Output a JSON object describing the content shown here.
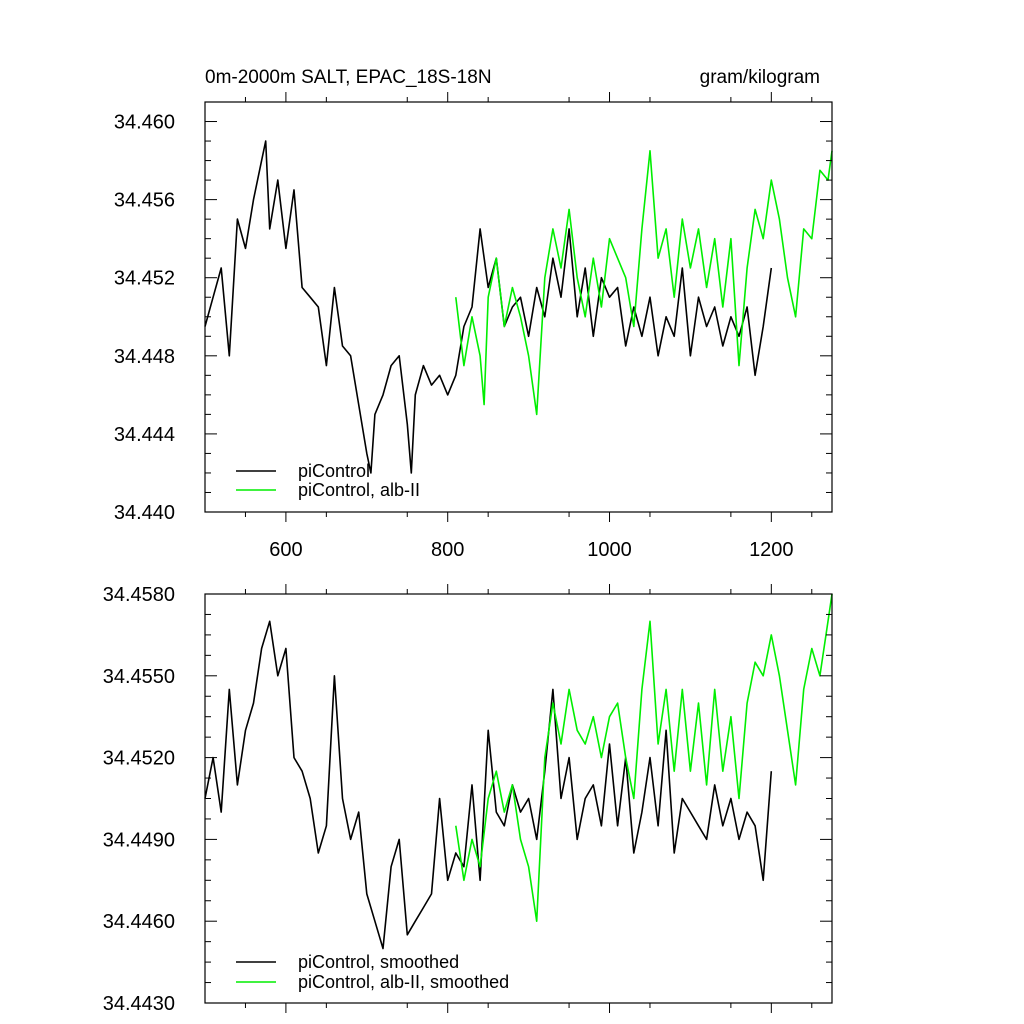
{
  "chart_data": [
    {
      "type": "line",
      "title": "0m-2000m SALT, EPAC_18S-18N",
      "units": "gram/kilogram",
      "xlim": [
        500,
        1275
      ],
      "ylim": [
        34.44,
        34.461
      ],
      "xticks": [
        600,
        800,
        1000,
        1200
      ],
      "xtick_labels": [
        "600",
        "800",
        "1000",
        "1200"
      ],
      "yticks": [
        34.44,
        34.444,
        34.448,
        34.452,
        34.456,
        34.46
      ],
      "ytick_labels": [
        "34.440",
        "34.444",
        "34.448",
        "34.452",
        "34.456",
        "34.460"
      ],
      "legend_position": "bottom-left",
      "grid": false,
      "series": [
        {
          "name": "piControl",
          "color": "#000000",
          "x": [
            500,
            510,
            520,
            530,
            540,
            550,
            560,
            570,
            575,
            580,
            590,
            600,
            610,
            620,
            630,
            640,
            650,
            660,
            670,
            680,
            690,
            700,
            705,
            710,
            720,
            730,
            740,
            750,
            755,
            760,
            770,
            780,
            790,
            800,
            810,
            820,
            830,
            840,
            850,
            860,
            870,
            880,
            890,
            900,
            910,
            920,
            930,
            940,
            950,
            960,
            970,
            980,
            990,
            1000,
            1010,
            1020,
            1030,
            1040,
            1050,
            1060,
            1070,
            1080,
            1090,
            1100,
            1110,
            1120,
            1130,
            1140,
            1150,
            1160,
            1170,
            1180,
            1190,
            1200
          ],
          "y": [
            34.4495,
            34.451,
            34.4525,
            34.448,
            34.455,
            34.4535,
            34.456,
            34.458,
            34.459,
            34.4545,
            34.457,
            34.4535,
            34.4565,
            34.4515,
            34.451,
            34.4505,
            34.4475,
            34.4515,
            34.4485,
            34.448,
            34.4455,
            34.443,
            34.442,
            34.445,
            34.446,
            34.4475,
            34.448,
            34.4445,
            34.442,
            34.446,
            34.4475,
            34.4465,
            34.447,
            34.446,
            34.447,
            34.4495,
            34.4505,
            34.4545,
            34.4515,
            34.453,
            34.4495,
            34.4505,
            34.451,
            34.449,
            34.4515,
            34.45,
            34.453,
            34.451,
            34.4545,
            34.45,
            34.4525,
            34.449,
            34.452,
            34.451,
            34.4515,
            34.4485,
            34.4505,
            34.449,
            34.451,
            34.448,
            34.45,
            34.449,
            34.4525,
            34.448,
            34.451,
            34.4495,
            34.4505,
            34.4485,
            34.45,
            34.449,
            34.4505,
            34.447,
            34.4495,
            34.4525
          ]
        },
        {
          "name": "piControl, alb-II",
          "color": "#00ee00",
          "x": [
            810,
            820,
            830,
            840,
            845,
            850,
            860,
            870,
            880,
            890,
            900,
            910,
            920,
            930,
            940,
            950,
            960,
            970,
            980,
            990,
            1000,
            1010,
            1020,
            1030,
            1040,
            1050,
            1060,
            1070,
            1080,
            1090,
            1100,
            1110,
            1120,
            1130,
            1140,
            1150,
            1160,
            1170,
            1180,
            1190,
            1200,
            1210,
            1220,
            1230,
            1240,
            1250,
            1260,
            1270,
            1275
          ],
          "y": [
            34.451,
            34.4475,
            34.45,
            34.448,
            34.4455,
            34.451,
            34.453,
            34.4495,
            34.4515,
            34.45,
            34.448,
            34.445,
            34.452,
            34.4545,
            34.4525,
            34.4555,
            34.452,
            34.45,
            34.453,
            34.4505,
            34.454,
            34.453,
            34.452,
            34.4495,
            34.4545,
            34.4585,
            34.453,
            34.4545,
            34.451,
            34.455,
            34.4525,
            34.4545,
            34.4515,
            34.454,
            34.4505,
            34.454,
            34.4475,
            34.4525,
            34.4555,
            34.454,
            34.457,
            34.455,
            34.452,
            34.45,
            34.4545,
            34.454,
            34.4575,
            34.457,
            34.4585
          ]
        }
      ]
    },
    {
      "type": "line",
      "title": "",
      "xlim": [
        500,
        1275
      ],
      "ylim": [
        34.443,
        34.458
      ],
      "xticks": [
        600,
        800,
        1000,
        1200
      ],
      "yticks": [
        34.443,
        34.446,
        34.449,
        34.452,
        34.455,
        34.458
      ],
      "ytick_labels": [
        "34.4430",
        "34.4460",
        "34.4490",
        "34.4520",
        "34.4550",
        "34.4580"
      ],
      "legend_position": "bottom-left",
      "grid": false,
      "series": [
        {
          "name": "piControl, smoothed",
          "color": "#000000",
          "x": [
            500,
            510,
            520,
            530,
            540,
            550,
            560,
            570,
            580,
            590,
            600,
            610,
            620,
            630,
            640,
            650,
            660,
            670,
            680,
            690,
            700,
            710,
            720,
            730,
            740,
            750,
            760,
            770,
            780,
            790,
            800,
            810,
            820,
            830,
            840,
            850,
            860,
            870,
            880,
            890,
            900,
            910,
            920,
            930,
            940,
            950,
            960,
            970,
            980,
            990,
            1000,
            1010,
            1020,
            1030,
            1040,
            1050,
            1060,
            1070,
            1080,
            1090,
            1100,
            1110,
            1120,
            1130,
            1140,
            1150,
            1160,
            1170,
            1180,
            1190,
            1200
          ],
          "y": [
            34.4505,
            34.452,
            34.45,
            34.4545,
            34.451,
            34.453,
            34.454,
            34.456,
            34.457,
            34.455,
            34.456,
            34.452,
            34.4515,
            34.4505,
            34.4485,
            34.4495,
            34.455,
            34.4505,
            34.449,
            34.45,
            34.447,
            34.446,
            34.445,
            34.448,
            34.449,
            34.4455,
            34.446,
            34.4465,
            34.447,
            34.4505,
            34.4475,
            34.4485,
            34.448,
            34.451,
            34.4475,
            34.453,
            34.45,
            34.4495,
            34.451,
            34.45,
            34.4505,
            34.449,
            34.4515,
            34.4545,
            34.4505,
            34.452,
            34.449,
            34.4505,
            34.451,
            34.4495,
            34.4525,
            34.4495,
            34.452,
            34.4485,
            34.45,
            34.452,
            34.4495,
            34.453,
            34.4485,
            34.4505,
            34.45,
            34.4495,
            34.449,
            34.451,
            34.4495,
            34.4505,
            34.449,
            34.45,
            34.4495,
            34.4475,
            34.4515
          ]
        },
        {
          "name": "piControl, alb-II, smoothed",
          "color": "#00ee00",
          "x": [
            810,
            820,
            830,
            840,
            850,
            860,
            870,
            880,
            890,
            900,
            910,
            920,
            930,
            940,
            950,
            960,
            970,
            980,
            990,
            1000,
            1010,
            1020,
            1030,
            1040,
            1050,
            1060,
            1070,
            1080,
            1090,
            1100,
            1110,
            1120,
            1130,
            1140,
            1150,
            1160,
            1170,
            1180,
            1190,
            1200,
            1210,
            1220,
            1230,
            1240,
            1250,
            1260,
            1270,
            1275
          ],
          "y": [
            34.4495,
            34.4475,
            34.449,
            34.448,
            34.4505,
            34.4515,
            34.45,
            34.451,
            34.449,
            34.448,
            34.446,
            34.452,
            34.454,
            34.4525,
            34.4545,
            34.453,
            34.4525,
            34.4535,
            34.452,
            34.4535,
            34.454,
            34.452,
            34.4505,
            34.4545,
            34.457,
            34.4525,
            34.4545,
            34.4515,
            34.4545,
            34.4515,
            34.454,
            34.451,
            34.4545,
            34.4515,
            34.4535,
            34.4505,
            34.454,
            34.4555,
            34.455,
            34.4565,
            34.455,
            34.453,
            34.451,
            34.4545,
            34.456,
            34.455,
            34.457,
            34.458
          ]
        }
      ]
    }
  ]
}
